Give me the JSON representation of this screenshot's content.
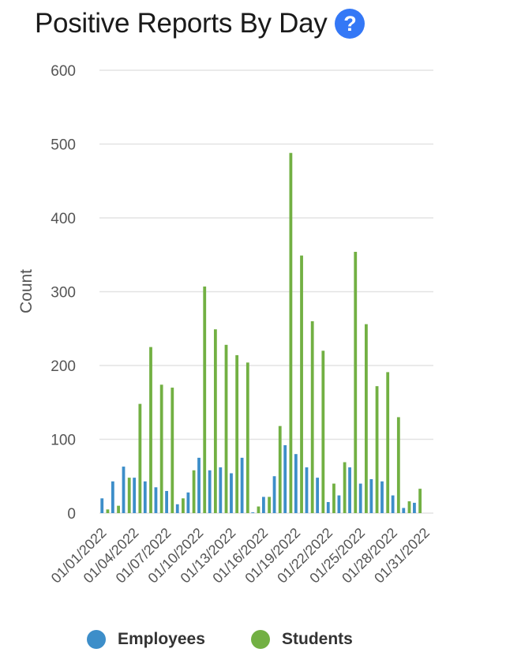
{
  "header": {
    "title": "Positive Reports By Day",
    "help_icon": "question-circle-icon",
    "help_glyph": "?"
  },
  "colors": {
    "employees": "#3d8ec9",
    "students": "#72b043",
    "grid": "#e3e3e3",
    "help_icon": "#3478f6",
    "axis_text": "#555555"
  },
  "legend": {
    "items": [
      {
        "label": "Employees",
        "color": "#3d8ec9"
      },
      {
        "label": "Students",
        "color": "#72b043"
      }
    ],
    "placement": "bottom"
  },
  "chart_data": {
    "type": "bar",
    "title": "Positive Reports By Day",
    "xlabel": "",
    "ylabel": "Count",
    "ylim": [
      0,
      600
    ],
    "yticks": [
      0,
      100,
      200,
      300,
      400,
      500,
      600
    ],
    "grid": true,
    "categories": [
      "01/01/2022",
      "01/02/2022",
      "01/03/2022",
      "01/04/2022",
      "01/05/2022",
      "01/06/2022",
      "01/07/2022",
      "01/08/2022",
      "01/09/2022",
      "01/10/2022",
      "01/11/2022",
      "01/12/2022",
      "01/13/2022",
      "01/14/2022",
      "01/15/2022",
      "01/16/2022",
      "01/17/2022",
      "01/18/2022",
      "01/19/2022",
      "01/20/2022",
      "01/21/2022",
      "01/22/2022",
      "01/23/2022",
      "01/24/2022",
      "01/25/2022",
      "01/26/2022",
      "01/27/2022",
      "01/28/2022",
      "01/29/2022",
      "01/30/2022",
      "01/31/2022"
    ],
    "x_tick_labels": [
      "01/01/2022",
      "01/04/2022",
      "01/07/2022",
      "01/10/2022",
      "01/13/2022",
      "01/16/2022",
      "01/19/2022",
      "01/22/2022",
      "01/25/2022",
      "01/28/2022",
      "01/31/2022"
    ],
    "series": [
      {
        "name": "Employees",
        "color": "#3d8ec9",
        "values": [
          20,
          43,
          63,
          48,
          43,
          35,
          30,
          12,
          28,
          75,
          58,
          62,
          54,
          75,
          1,
          22,
          50,
          92,
          80,
          62,
          48,
          15,
          24,
          62,
          40,
          46,
          43,
          24,
          7,
          14,
          0
        ]
      },
      {
        "name": "Students",
        "color": "#72b043",
        "values": [
          5,
          10,
          48,
          148,
          225,
          174,
          170,
          20,
          58,
          307,
          249,
          228,
          214,
          204,
          9,
          22,
          118,
          488,
          349,
          260,
          220,
          40,
          69,
          354,
          256,
          172,
          191,
          130,
          16,
          33,
          0
        ]
      }
    ]
  }
}
